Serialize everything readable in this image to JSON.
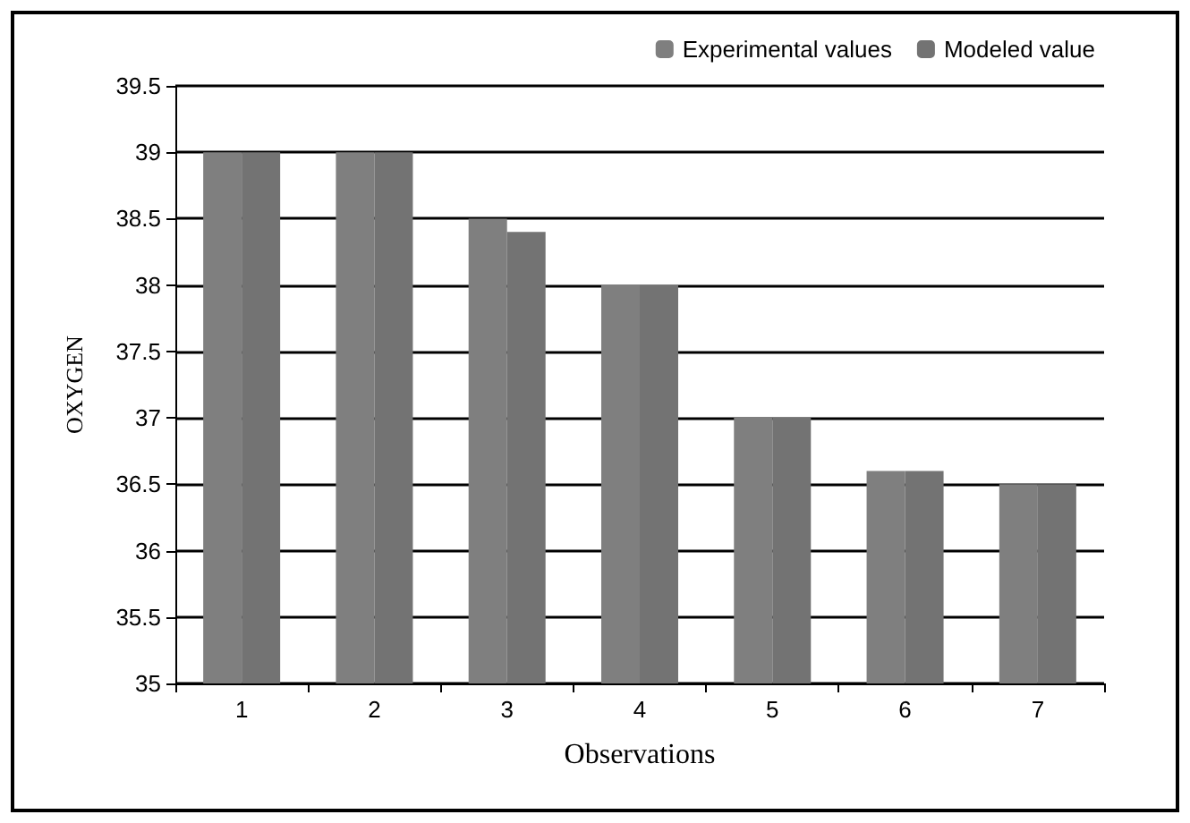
{
  "chart_data": {
    "type": "bar",
    "xlabel": "Observations",
    "ylabel": "OXYGEN",
    "categories": [
      "1",
      "2",
      "3",
      "4",
      "5",
      "6",
      "7"
    ],
    "series": [
      {
        "name": "Experimental values",
        "color": "#7f7f7f",
        "values": [
          39,
          39,
          38.5,
          38,
          37,
          36.6,
          36.5
        ]
      },
      {
        "name": "Modeled value",
        "color": "#737373",
        "values": [
          39,
          39,
          38.4,
          38,
          37,
          36.6,
          36.5
        ]
      }
    ],
    "ylim": [
      35,
      39.5
    ],
    "yticks": [
      35,
      35.5,
      36,
      36.5,
      37,
      37.5,
      38,
      38.5,
      39,
      39.5
    ],
    "grid": "y",
    "legend": "top right"
  }
}
